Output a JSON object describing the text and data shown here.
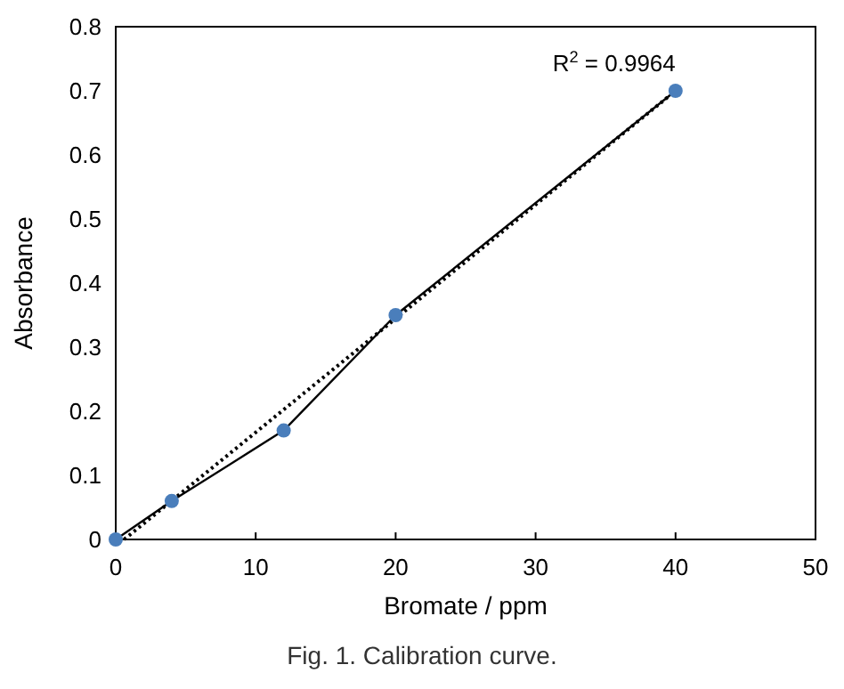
{
  "chart_data": {
    "type": "scatter",
    "xlabel": "Bromate / ppm",
    "ylabel": "Absorbance",
    "xlim": [
      0,
      50
    ],
    "xticks": [
      0,
      10,
      20,
      30,
      40,
      50
    ],
    "ylim": [
      0,
      0.8
    ],
    "yticks": [
      0,
      0.1,
      0.2,
      0.3,
      0.4,
      0.5,
      0.6,
      0.7,
      0.8
    ],
    "grid": false,
    "series": [
      {
        "type": "line",
        "color": "#000000",
        "x": [
          0,
          4,
          12,
          20,
          40
        ],
        "values": [
          0,
          0.06,
          0.17,
          0.35,
          0.7
        ],
        "marker": "none",
        "line_style": "solid"
      },
      {
        "type": "line",
        "color": "#000000",
        "x": [
          0.6,
          40
        ],
        "values": [
          0,
          0.7
        ],
        "marker": "none",
        "line_style": "dotted"
      },
      {
        "color": "#4a7ebb",
        "x": [
          0,
          4,
          12,
          20,
          40
        ],
        "values": [
          0,
          0.06,
          0.17,
          0.35,
          0.7
        ],
        "marker": "circle"
      }
    ],
    "annotations": [
      {
        "text": "R$^{2}$ = 0.9964",
        "x": 40,
        "y": 0.7
      },
      "Fig. 1. Calibration curve."
    ]
  }
}
